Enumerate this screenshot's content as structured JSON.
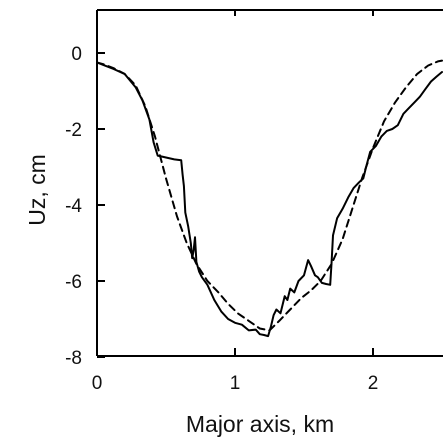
{
  "chart_data": {
    "type": "line",
    "title": "",
    "xlabel": "Major axis, km",
    "ylabel": "Uz, cm",
    "xlim": [
      0,
      2.5
    ],
    "ylim": [
      -8,
      1.1
    ],
    "x_ticks": [
      0,
      1,
      2
    ],
    "x_tick_labels": [
      "0",
      "1",
      "2"
    ],
    "y_ticks": [
      0,
      -2,
      -4,
      -6,
      -8
    ],
    "y_tick_labels": [
      "0",
      "-2",
      "-4",
      "-6",
      "-8"
    ],
    "grid": false,
    "legend": "none",
    "series": [
      {
        "style": "solid",
        "color": "#000000",
        "x": [
          0.0,
          0.05,
          0.12,
          0.2,
          0.28,
          0.33,
          0.38,
          0.41,
          0.44,
          0.5,
          0.56,
          0.61,
          0.62,
          0.63,
          0.64,
          0.66,
          0.68,
          0.69,
          0.7,
          0.71,
          0.72,
          0.74,
          0.76,
          0.8,
          0.85,
          0.9,
          0.95,
          1.0,
          1.05,
          1.1,
          1.15,
          1.18,
          1.21,
          1.24,
          1.26,
          1.28,
          1.3,
          1.33,
          1.36,
          1.38,
          1.4,
          1.43,
          1.46,
          1.5,
          1.53,
          1.55,
          1.58,
          1.6,
          1.63,
          1.66,
          1.69,
          1.7,
          1.71,
          1.74,
          1.78,
          1.82,
          1.86,
          1.9,
          1.93,
          1.95,
          1.98,
          2.02,
          2.06,
          2.1,
          2.14,
          2.18,
          2.22,
          2.26,
          2.3,
          2.34,
          2.38,
          2.42,
          2.46,
          2.5
        ],
        "y": [
          -0.25,
          -0.32,
          -0.42,
          -0.55,
          -0.9,
          -1.25,
          -1.75,
          -2.35,
          -2.7,
          -2.75,
          -2.8,
          -2.82,
          -3.2,
          -3.5,
          -4.2,
          -4.55,
          -5.0,
          -5.4,
          -5.2,
          -4.85,
          -5.5,
          -5.75,
          -5.9,
          -6.1,
          -6.5,
          -6.8,
          -7.0,
          -7.1,
          -7.15,
          -7.3,
          -7.28,
          -7.4,
          -7.42,
          -7.45,
          -7.2,
          -6.9,
          -6.75,
          -6.85,
          -6.4,
          -6.5,
          -6.2,
          -6.3,
          -6.0,
          -5.85,
          -5.45,
          -5.6,
          -5.85,
          -5.9,
          -6.05,
          -6.08,
          -6.1,
          -5.5,
          -4.8,
          -4.35,
          -4.1,
          -3.8,
          -3.55,
          -3.4,
          -3.3,
          -3.0,
          -2.6,
          -2.45,
          -2.2,
          -2.05,
          -2.0,
          -1.9,
          -1.6,
          -1.45,
          -1.3,
          -1.15,
          -0.95,
          -0.75,
          -0.62,
          -0.5
        ]
      },
      {
        "style": "dashed",
        "color": "#000000",
        "x": [
          0.0,
          0.05,
          0.12,
          0.2,
          0.28,
          0.35,
          0.42,
          0.5,
          0.58,
          0.65,
          0.72,
          0.8,
          0.88,
          0.95,
          1.02,
          1.1,
          1.18,
          1.25,
          1.32,
          1.4,
          1.48,
          1.55,
          1.62,
          1.7,
          1.78,
          1.85,
          1.92,
          2.0,
          2.08,
          2.16,
          2.24,
          2.32,
          2.4,
          2.47,
          2.5
        ],
        "y": [
          -0.25,
          -0.3,
          -0.4,
          -0.55,
          -0.85,
          -1.4,
          -2.2,
          -3.3,
          -4.3,
          -5.0,
          -5.55,
          -6.0,
          -6.3,
          -6.6,
          -6.85,
          -7.05,
          -7.25,
          -7.3,
          -7.05,
          -6.75,
          -6.45,
          -6.25,
          -6.0,
          -5.55,
          -4.9,
          -4.1,
          -3.3,
          -2.5,
          -1.8,
          -1.3,
          -0.9,
          -0.55,
          -0.33,
          -0.22,
          -0.2
        ]
      }
    ]
  }
}
